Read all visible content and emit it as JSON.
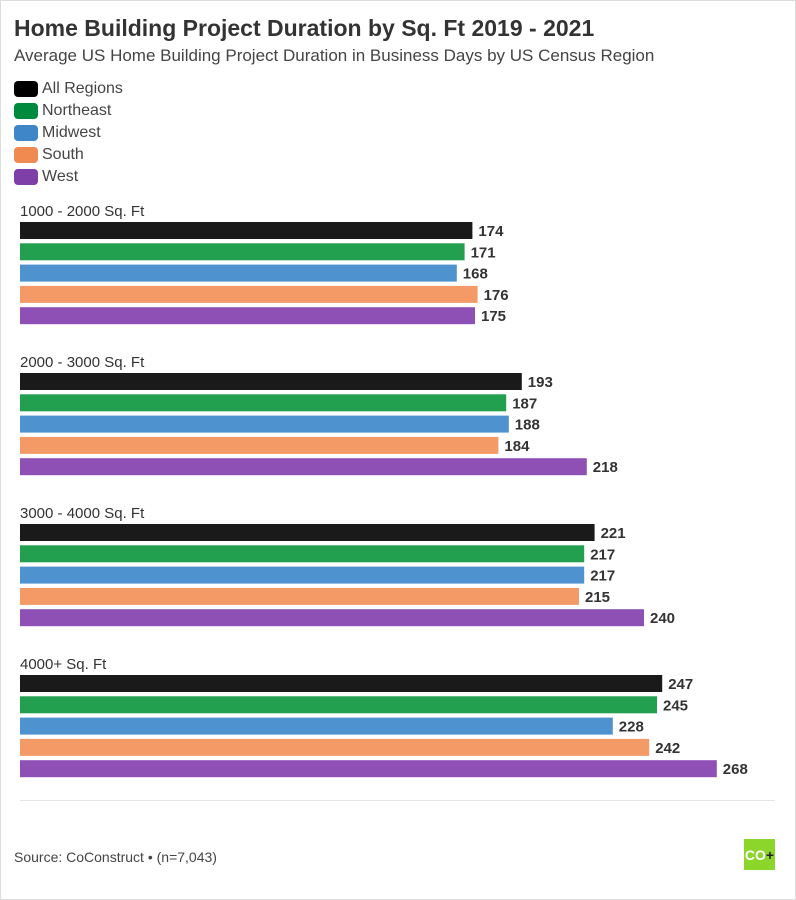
{
  "chart_data": {
    "type": "bar",
    "orientation": "horizontal",
    "title": "Home Building Project Duration by Sq. Ft 2019 - 2021",
    "subtitle": "Average US Home Building Project Duration in Business Days by US Census Region",
    "categories": [
      "1000 - 2000 Sq. Ft",
      "2000 - 3000 Sq. Ft",
      "3000 - 4000 Sq. Ft",
      "4000+ Sq. Ft"
    ],
    "series": [
      {
        "name": "All Regions",
        "color": "#1a1a1a",
        "legend_color": "#000000",
        "values": [
          174,
          193,
          221,
          247
        ]
      },
      {
        "name": "Northeast",
        "color": "#22a04f",
        "legend_color": "#008a3e",
        "values": [
          171,
          187,
          217,
          245
        ]
      },
      {
        "name": "Midwest",
        "color": "#4f92d0",
        "legend_color": "#3f86c8",
        "values": [
          168,
          188,
          217,
          228
        ]
      },
      {
        "name": "South",
        "color": "#f49a66",
        "legend_color": "#f08a50",
        "values": [
          176,
          184,
          215,
          242
        ]
      },
      {
        "name": "West",
        "color": "#8f50b5",
        "legend_color": "#7f3fa8",
        "values": [
          175,
          218,
          240,
          268
        ]
      }
    ],
    "xlim": [
      0,
      290
    ],
    "grid": false,
    "legend_position": "top-left",
    "data_labels": true
  },
  "footer": {
    "source": "Source: CoConstruct • (n=7,043)",
    "logo_text": "CO",
    "logo_plus": "+"
  }
}
